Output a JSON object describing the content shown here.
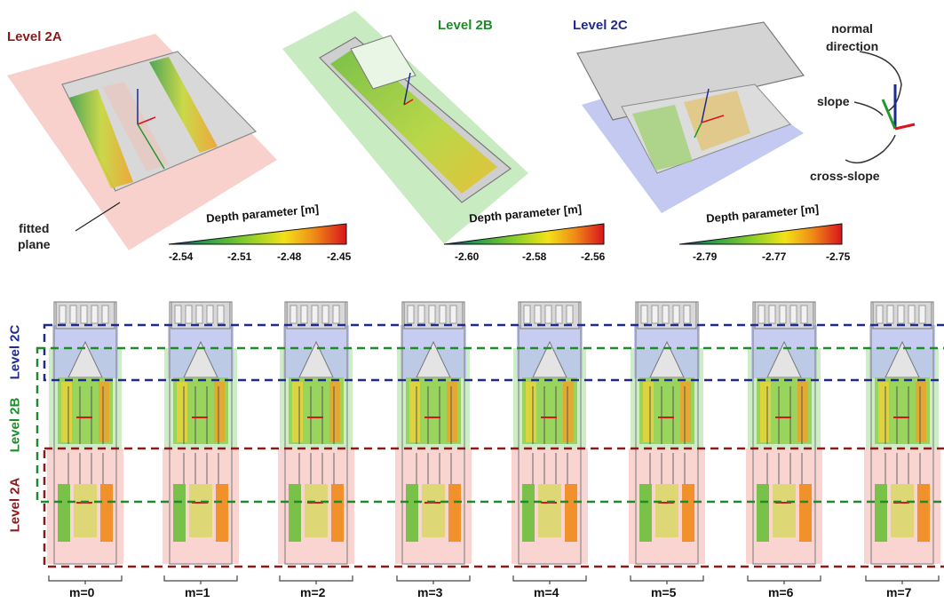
{
  "top": {
    "level_2a": "Level 2A",
    "level_2b": "Level 2B",
    "level_2c": "Level 2C",
    "fitted_plane": [
      "fitted",
      "plane"
    ],
    "axes_legend": {
      "normal": [
        "normal",
        "direction"
      ],
      "slope": "slope",
      "cross_slope": "cross-slope"
    }
  },
  "colorbars": [
    {
      "title": "Depth parameter [m]",
      "ticks": [
        "-2.54",
        "-2.51",
        "-2.48",
        "-2.45"
      ]
    },
    {
      "title": "Depth parameter [m]",
      "ticks": [
        "-2.60",
        "-2.58",
        "-2.56"
      ]
    },
    {
      "title": "Depth parameter [m]",
      "ticks": [
        "-2.79",
        "-2.77",
        "-2.75"
      ]
    }
  ],
  "bottom": {
    "side_labels": {
      "l2c": "Level 2C",
      "l2b": "Level 2B",
      "l2a": "Level 2A"
    },
    "m_labels": [
      "m=0",
      "m=1",
      "m=2",
      "m=3",
      "m=4",
      "m=5",
      "m=6",
      "m=7"
    ]
  },
  "colors": {
    "level_2a": "#8b1a1a",
    "level_2b": "#1f8a2a",
    "level_2c": "#1f2a8a",
    "plane_2a": "#f7c9c4",
    "plane_2b": "#bfe8b6",
    "plane_2c": "#b9c0ee"
  }
}
